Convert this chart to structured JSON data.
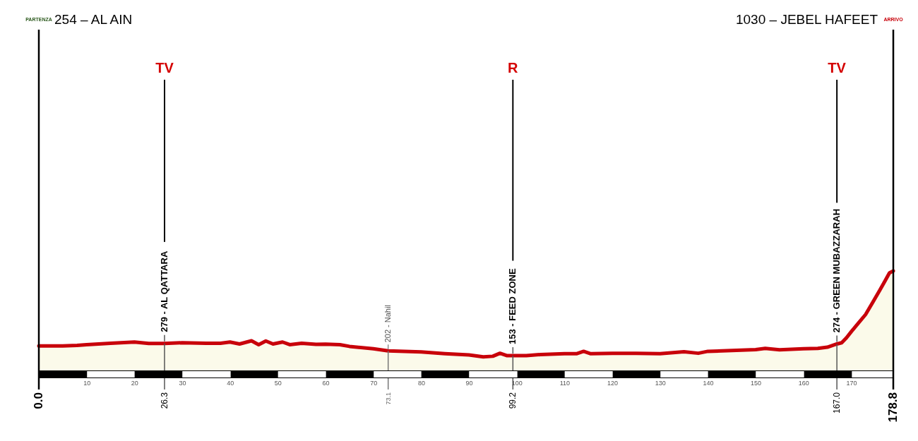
{
  "chart_data": {
    "type": "area",
    "color": "#c8000a",
    "x": [
      0,
      5,
      8,
      10,
      15,
      20,
      23,
      26.3,
      30,
      35,
      38,
      40,
      42,
      44.5,
      46,
      47.5,
      49,
      51,
      52.5,
      55,
      58,
      60,
      63,
      65,
      70,
      73.1,
      80,
      85,
      90,
      93,
      95,
      96.5,
      98,
      99.2,
      102,
      105,
      110,
      112.5,
      114,
      115.5,
      120,
      125,
      130,
      135,
      138,
      140,
      145,
      150,
      152,
      155,
      160,
      163,
      165,
      167,
      168,
      169,
      170,
      171.5,
      173,
      174.5,
      176,
      177,
      178,
      178.8
    ],
    "values": [
      254,
      254,
      259,
      267,
      282,
      294,
      279,
      279,
      287,
      282,
      282,
      294,
      274,
      307,
      267,
      305,
      274,
      294,
      267,
      282,
      271,
      272,
      267,
      249,
      224,
      202,
      191,
      173,
      160,
      140,
      147,
      178,
      153,
      153,
      153,
      165,
      173,
      173,
      198,
      173,
      178,
      178,
      173,
      193,
      178,
      198,
      206,
      216,
      229,
      213,
      224,
      229,
      241,
      274,
      287,
      338,
      401,
      490,
      579,
      705,
      832,
      921,
      1010,
      1030
    ],
    "value_labels": [
      null,
      null,
      null,
      null,
      null,
      null,
      null,
      "279 - AL QATTARA",
      null,
      null,
      null,
      null,
      null,
      null,
      null,
      null,
      null,
      null,
      null,
      null,
      null,
      null,
      null,
      null,
      null,
      "202 - Nahil",
      null,
      null,
      null,
      null,
      null,
      null,
      null,
      "153 - FEED ZONE",
      null,
      null,
      null,
      null,
      null,
      null,
      null,
      null,
      null,
      null,
      null,
      null,
      null,
      null,
      null,
      null,
      null,
      null,
      null,
      "274 - GREEN MUBAZZARAH",
      null,
      null,
      null,
      null,
      null,
      null,
      null,
      null,
      null,
      null
    ],
    "xlim": [
      0,
      178.8
    ],
    "xticks": [
      10,
      20,
      30,
      40,
      50,
      60,
      70,
      80,
      90,
      100,
      110,
      120,
      130,
      140,
      150,
      160,
      170
    ],
    "tick_labels": "x",
    "ref_lines": [
      {
        "axis": "x",
        "value": 0,
        "label": "0.0",
        "color": "#000000"
      },
      {
        "axis": "x",
        "value": 26.3,
        "label": "26.3",
        "color": "#555555"
      },
      {
        "axis": "x",
        "value": 73.1,
        "label": "73.1",
        "color": "#777777"
      },
      {
        "axis": "x",
        "value": 99.2,
        "label": "99.2",
        "color": "#555555"
      },
      {
        "axis": "x",
        "value": 167,
        "label": "167.0",
        "color": "#555555"
      },
      {
        "axis": "x",
        "value": 178.8,
        "label": "178.8",
        "color": "#000000"
      }
    ],
    "annotations": [
      "PARTENZA",
      "254 – AL AIN",
      "1030 – JEBEL HAFEET",
      "ARRIVO",
      {
        "text": "TV",
        "x": 26.3
      },
      {
        "text": "R",
        "x": 99.2
      },
      {
        "text": "TV",
        "x": 167
      }
    ]
  }
}
